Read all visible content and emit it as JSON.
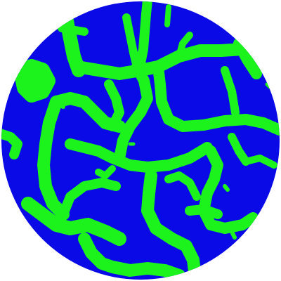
{
  "image": {
    "kind": "circular-pattern-map",
    "colors": {
      "background": "#ffffff",
      "disc": "#0a0ae6",
      "pattern": "#1cf21c"
    }
  }
}
